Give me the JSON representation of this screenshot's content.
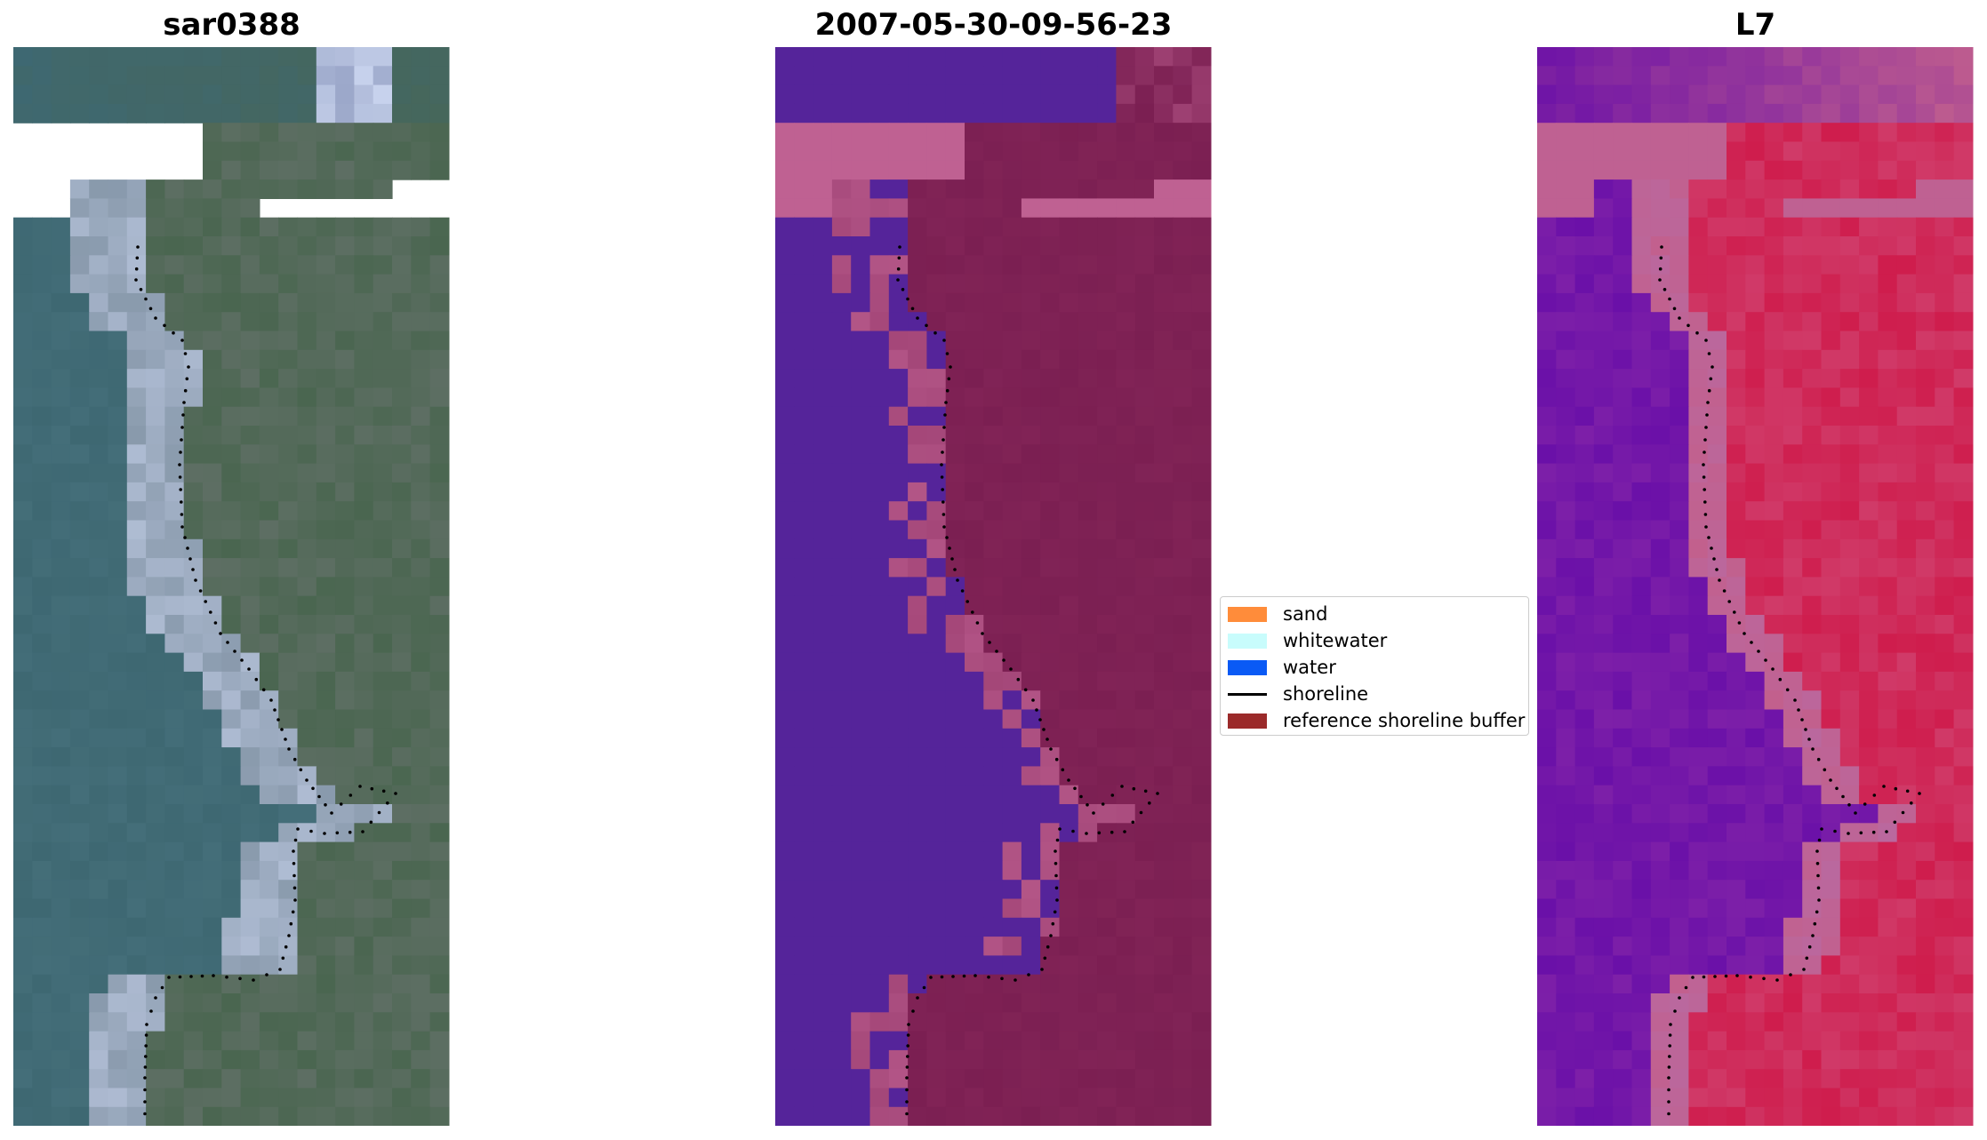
{
  "panels": [
    {
      "title": "sar0388",
      "kind": "rgb"
    },
    {
      "title": "2007-05-30-09-56-23",
      "kind": "classified"
    },
    {
      "title": "L7",
      "kind": "index"
    }
  ],
  "legend": {
    "items": [
      {
        "label": "sand",
        "color": "#ff8c3a",
        "type": "patch"
      },
      {
        "label": "whitewater",
        "color": "#c8fcfc",
        "type": "patch"
      },
      {
        "label": "water",
        "color": "#0a5af5",
        "type": "patch"
      },
      {
        "label": "shoreline",
        "color": "#000000",
        "type": "line"
      },
      {
        "label": "reference shoreline buffer",
        "color": "#9b2a2a",
        "type": "patch"
      }
    ]
  },
  "colors": {
    "rgb_water": "#3e6872",
    "rgb_land": "#4a6650",
    "rgb_whitewater": "#c9d4ee",
    "class_water": "#55249a",
    "class_buffer": "#7b1f52",
    "class_pink": "#bf6192",
    "index_low": "#6a10a8",
    "index_high": "#cf1d4d",
    "index_mid": "#c2608d",
    "shoreline": "#000000"
  }
}
